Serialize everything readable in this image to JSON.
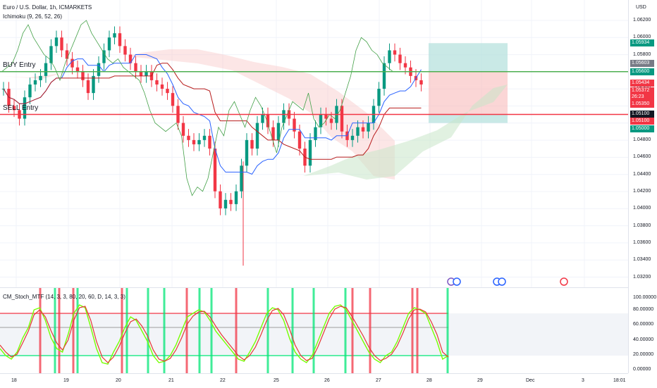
{
  "header": {
    "symbol": "Euro / U.S. Dollar, 1h, ICMARKETS",
    "indicator": "Ichimoku (9, 26, 52, 26)",
    "stoch_indicator": "CM_Stoch_MTF (14, 3, 3, 80, 20, 60, D, 14, 3, 3)"
  },
  "hlines": {
    "buy_label": "BUY Entry",
    "sell_label": "SELL Entry"
  },
  "price_axis": {
    "currency": "USD",
    "labels": [
      "1.06200",
      "1.06000",
      "1.05800",
      "1.05600",
      "1.05400",
      "1.05200",
      "1.05000",
      "1.04800",
      "1.04600",
      "1.04400",
      "1.04200",
      "1.04000",
      "1.03800",
      "1.03600",
      "1.03400",
      "1.03200"
    ],
    "badges": [
      {
        "text": "1.05934",
        "color": "#089981"
      },
      {
        "text": "1.05603",
        "color": "#787b86"
      },
      {
        "text": "1.05600",
        "color": "#089981"
      },
      {
        "text": "1.05434",
        "color": "#f23645"
      },
      {
        "text": "1.05372",
        "color": "#f23645"
      },
      {
        "text": "26:23",
        "color": "#f23645"
      },
      {
        "text": "1.05350",
        "color": "#f23645"
      },
      {
        "text": "1.05100",
        "color": "#131722"
      },
      {
        "text": "1.05100",
        "color": "#f23645"
      },
      {
        "text": "1.05000",
        "color": "#089981"
      }
    ],
    "stoch_labels": [
      "100.00000",
      "80.00000",
      "60.00000",
      "40.00000",
      "20.00000",
      "0.00000"
    ]
  },
  "time_axis": {
    "labels": [
      "18",
      "19",
      "20",
      "21",
      "22",
      "25",
      "26",
      "27",
      "28",
      "29",
      "Dec",
      "3",
      "18:01"
    ]
  },
  "colors": {
    "up": "#089981",
    "down": "#f23645",
    "buy_line": "#4caf50",
    "sell_line": "#f23645",
    "tenkan": "#2962ff",
    "kijun": "#b71c1c",
    "chikou": "#43a047"
  },
  "chart_data": {
    "type": "candlestick",
    "title": "Euro / U.S. Dollar, 1h, ICMARKETS",
    "ylim": [
      1.032,
      1.063
    ],
    "levels": {
      "buy_entry": 1.056,
      "sell_entry": 1.051,
      "tp_long": 1.05934,
      "sl_short": 1.05434,
      "tp_short": 1.05
    },
    "close_path": [
      1.054,
      1.052,
      1.0515,
      1.0505,
      1.053,
      1.0545,
      1.055,
      1.0555,
      1.057,
      1.059,
      1.06,
      1.0585,
      1.0575,
      1.0565,
      1.056,
      1.055,
      1.0535,
      1.0555,
      1.057,
      1.0585,
      1.06,
      1.0605,
      1.059,
      1.058,
      1.057,
      1.056,
      1.0555,
      1.056,
      1.055,
      1.0545,
      1.054,
      1.0535,
      1.052,
      1.05,
      1.0485,
      1.048,
      1.0475,
      1.048,
      1.0485,
      1.047,
      1.042,
      1.04,
      1.041,
      1.0405,
      1.042,
      1.045,
      1.048,
      1.047,
      1.05,
      1.051,
      1.0495,
      1.048,
      1.05,
      1.0515,
      1.0505,
      1.049,
      1.047,
      1.045,
      1.048,
      1.0495,
      1.051,
      1.0505,
      1.05,
      1.052,
      1.049,
      1.048,
      1.0485,
      1.0495,
      1.049,
      1.05,
      1.052,
      1.054,
      1.057,
      1.0585,
      1.058,
      1.057,
      1.0565,
      1.0555,
      1.055,
      1.0545
    ],
    "stoch_levels": [
      80,
      60,
      20
    ],
    "stoch_k": [
      30,
      20,
      15,
      25,
      45,
      60,
      85,
      88,
      70,
      45,
      30,
      25,
      50,
      80,
      92,
      88,
      60,
      30,
      10,
      8,
      25,
      40,
      60,
      75,
      70,
      55,
      40,
      20,
      10,
      12,
      20,
      35,
      55,
      75,
      80,
      85,
      82,
      70,
      55,
      45,
      35,
      25,
      15,
      12,
      25,
      40,
      60,
      80,
      88,
      85,
      70,
      45,
      25,
      15,
      10,
      20,
      40,
      60,
      80,
      90,
      92,
      85,
      70,
      55,
      40,
      25,
      15,
      10,
      20,
      25,
      40,
      60,
      80,
      88,
      85,
      80,
      60,
      40,
      15,
      20
    ],
    "stoch_d": [
      35,
      25,
      18,
      22,
      38,
      55,
      78,
      85,
      75,
      55,
      38,
      28,
      42,
      70,
      88,
      90,
      70,
      40,
      18,
      10,
      18,
      33,
      52,
      68,
      72,
      62,
      48,
      28,
      15,
      12,
      16,
      28,
      45,
      65,
      76,
      82,
      83,
      75,
      62,
      50,
      40,
      30,
      20,
      14,
      20,
      32,
      50,
      70,
      84,
      87,
      78,
      58,
      35,
      20,
      13,
      16,
      32,
      52,
      72,
      86,
      90,
      88,
      76,
      62,
      48,
      32,
      20,
      13,
      16,
      22,
      34,
      52,
      72,
      85,
      86,
      82,
      68,
      50,
      25,
      18
    ],
    "signal_bars": {
      "red": [
        57,
        84,
        104,
        173,
        265,
        335,
        500,
        525,
        585,
        592
      ],
      "green": [
        78,
        110,
        180,
        210,
        233,
        283,
        300,
        380,
        415,
        445,
        490,
        635
      ]
    }
  }
}
